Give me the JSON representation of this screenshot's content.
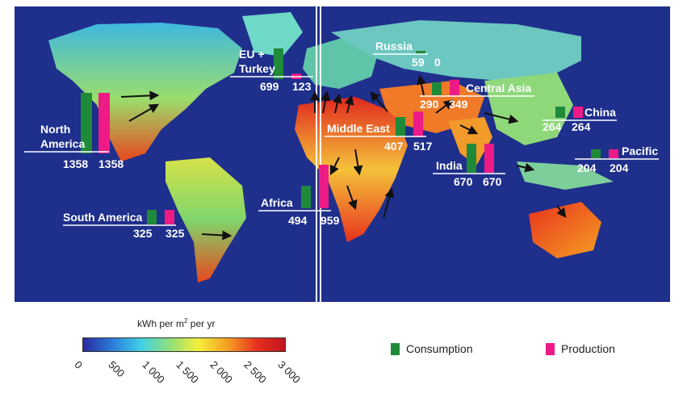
{
  "colors": {
    "ocean": "#1f2f8c",
    "consumption": "#1f8a3a",
    "production": "#ee1a86",
    "arrow": "#111111"
  },
  "regions": [
    {
      "id": "north-america",
      "label_lines": [
        "North",
        "America"
      ],
      "consumption": "1358",
      "production": "1358",
      "consumption_value": 1358,
      "production_value": 1358
    },
    {
      "id": "south-america",
      "label_lines": [
        "South America"
      ],
      "consumption": "325",
      "production": "325",
      "consumption_value": 325,
      "production_value": 325
    },
    {
      "id": "eu-turkey",
      "label_lines": [
        "EU +",
        "Turkey"
      ],
      "consumption": "699",
      "production": "123",
      "consumption_value": 699,
      "production_value": 123
    },
    {
      "id": "africa",
      "label_lines": [
        "Africa"
      ],
      "consumption": "494",
      "production": "959",
      "consumption_value": 494,
      "production_value": 959
    },
    {
      "id": "russia",
      "label_lines": [
        "Russia"
      ],
      "consumption": "59",
      "production": "0",
      "consumption_value": 59,
      "production_value": 0
    },
    {
      "id": "middle-east",
      "label_lines": [
        "Middle East"
      ],
      "consumption": "407",
      "production": "517",
      "consumption_value": 407,
      "production_value": 517
    },
    {
      "id": "central-asia",
      "label_lines": [
        "Central Asia"
      ],
      "consumption": "290",
      "production": "349",
      "consumption_value": 290,
      "production_value": 349
    },
    {
      "id": "india",
      "label_lines": [
        "India"
      ],
      "consumption": "670",
      "production": "670",
      "consumption_value": 670,
      "production_value": 670
    },
    {
      "id": "china",
      "label_lines": [
        "China"
      ],
      "consumption": "264",
      "production": "264",
      "consumption_value": 264,
      "production_value": 264
    },
    {
      "id": "pacific",
      "label_lines": [
        "Pacific"
      ],
      "consumption": "204",
      "production": "204",
      "consumption_value": 204,
      "production_value": 204
    }
  ],
  "legend": {
    "title": "kWh per m",
    "title_sup": "2",
    "title_suffix": " per yr",
    "ticks": [
      "0",
      "500",
      "1 000",
      "1 500",
      "2 000",
      "2 500",
      "3 000"
    ],
    "gradient": [
      "#2a2aa0",
      "#2a7ad8",
      "#3fd0e6",
      "#8fe07a",
      "#f5ee3a",
      "#f5a023",
      "#e8321e",
      "#c0141e"
    ]
  },
  "key": {
    "consumption_label": "Consumption",
    "production_label": "Production"
  }
}
